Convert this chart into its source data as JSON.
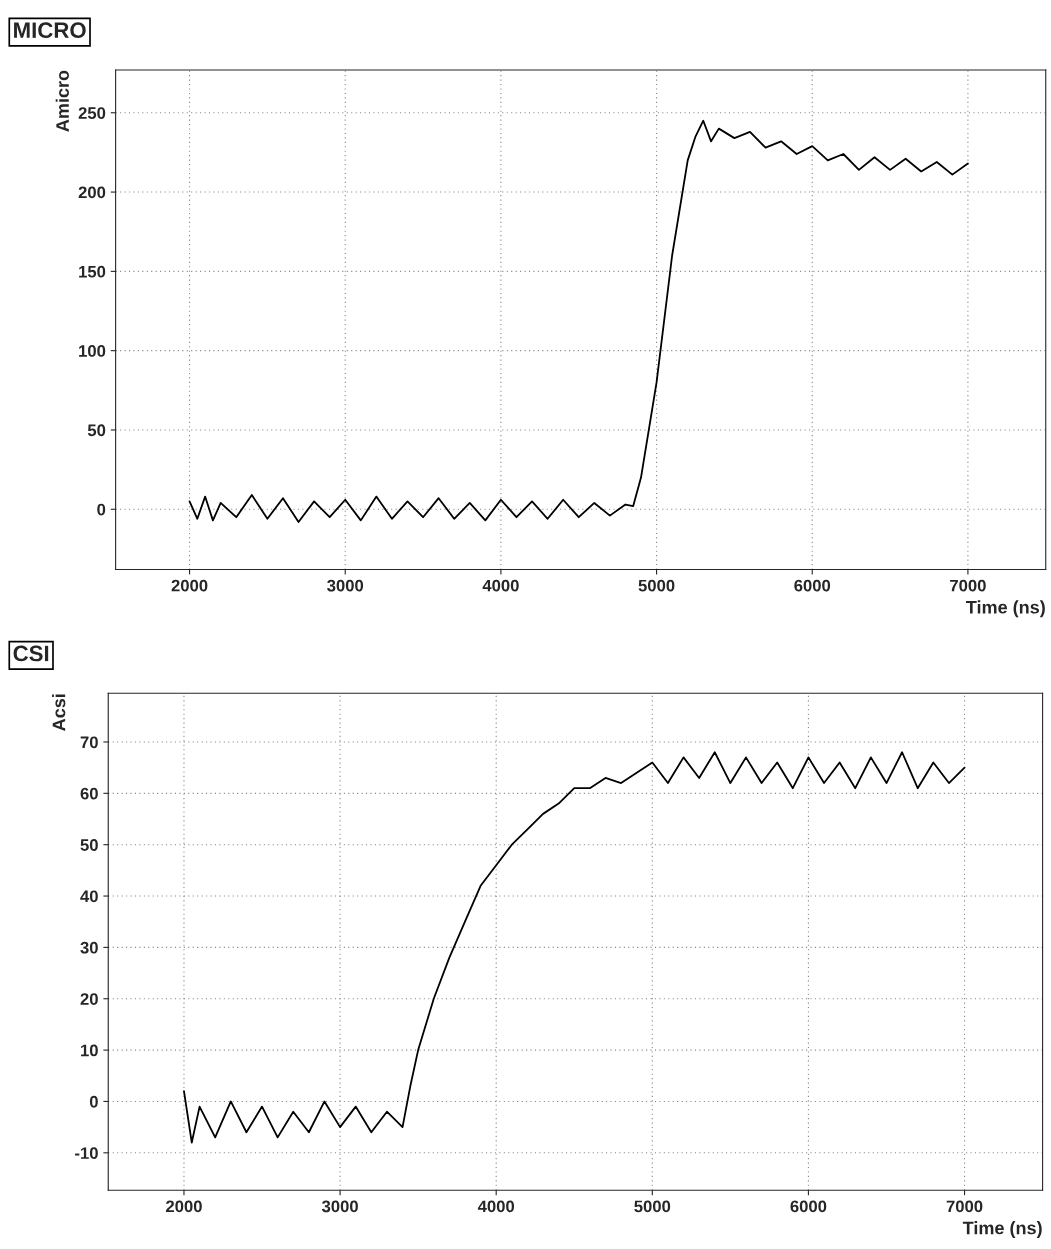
{
  "chart_data": [
    {
      "type": "line",
      "title": "MICRO",
      "xlabel": "Time (ns)",
      "ylabel": "Amicro",
      "xlim": [
        1525,
        7500
      ],
      "ylim": [
        -38,
        277
      ],
      "xticks": [
        2000,
        3000,
        4000,
        5000,
        6000,
        7000
      ],
      "yticks": [
        0,
        50,
        100,
        150,
        200,
        250
      ],
      "grid": true,
      "series": [
        {
          "color": "#000000",
          "x": [
            2000,
            2050,
            2100,
            2150,
            2200,
            2300,
            2400,
            2500,
            2600,
            2700,
            2800,
            2900,
            3000,
            3100,
            3200,
            3300,
            3400,
            3500,
            3600,
            3700,
            3800,
            3900,
            4000,
            4100,
            4200,
            4300,
            4400,
            4500,
            4600,
            4700,
            4800,
            4850,
            4900,
            5000,
            5100,
            5200,
            5250,
            5300,
            5350,
            5400,
            5500,
            5600,
            5700,
            5800,
            5900,
            6000,
            6100,
            6200,
            6300,
            6400,
            6500,
            6600,
            6700,
            6800,
            6900,
            7000
          ],
          "values": [
            5,
            -6,
            8,
            -7,
            4,
            -5,
            9,
            -6,
            7,
            -8,
            5,
            -5,
            6,
            -7,
            8,
            -6,
            5,
            -5,
            7,
            -6,
            4,
            -7,
            6,
            -5,
            5,
            -6,
            6,
            -5,
            4,
            -4,
            3,
            2,
            20,
            80,
            160,
            220,
            235,
            245,
            232,
            240,
            234,
            238,
            228,
            232,
            224,
            229,
            220,
            224,
            214,
            222,
            214,
            221,
            213,
            219,
            211,
            218
          ]
        }
      ]
    },
    {
      "type": "line",
      "title": "CSI",
      "xlabel": "Time (ns)",
      "ylabel": "Acsi",
      "xlim": [
        1515,
        7500
      ],
      "ylim": [
        -17.3,
        79.5
      ],
      "xticks": [
        2000,
        3000,
        4000,
        5000,
        6000,
        7000
      ],
      "yticks": [
        -10,
        0,
        10,
        20,
        30,
        40,
        50,
        60,
        70
      ],
      "grid": true,
      "series": [
        {
          "color": "#000000",
          "x": [
            2000,
            2050,
            2100,
            2200,
            2300,
            2400,
            2500,
            2600,
            2700,
            2800,
            2900,
            3000,
            3100,
            3200,
            3300,
            3400,
            3450,
            3500,
            3600,
            3700,
            3800,
            3900,
            4000,
            4100,
            4200,
            4300,
            4400,
            4500,
            4600,
            4700,
            4800,
            4900,
            5000,
            5100,
            5200,
            5300,
            5400,
            5500,
            5600,
            5700,
            5800,
            5900,
            6000,
            6100,
            6200,
            6300,
            6400,
            6500,
            6600,
            6700,
            6800,
            6900,
            7000
          ],
          "values": [
            2,
            -8,
            -1,
            -7,
            0,
            -6,
            -1,
            -7,
            -2,
            -6,
            0,
            -5,
            -1,
            -6,
            -2,
            -5,
            3,
            10,
            20,
            28,
            35,
            42,
            46,
            50,
            53,
            56,
            58,
            61,
            61,
            63,
            62,
            64,
            66,
            62,
            67,
            63,
            68,
            62,
            67,
            62,
            66,
            61,
            67,
            62,
            66,
            61,
            67,
            62,
            68,
            61,
            66,
            62,
            65
          ]
        }
      ]
    }
  ]
}
